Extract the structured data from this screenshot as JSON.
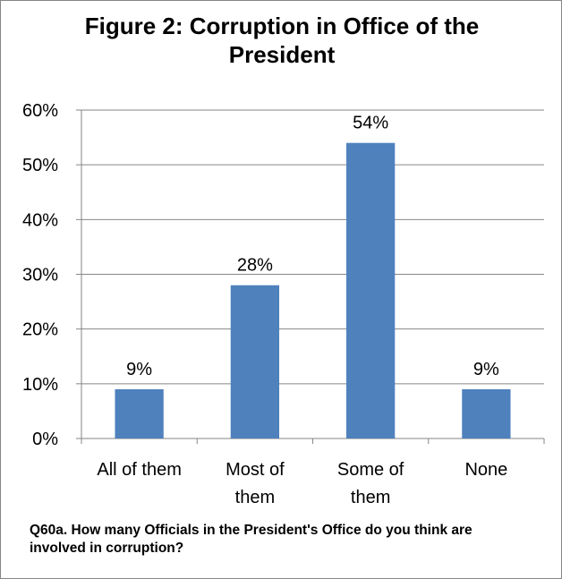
{
  "chart_data": {
    "type": "bar",
    "title": "Figure 2: Corruption in Office of the President",
    "categories": [
      [
        "All of them"
      ],
      [
        "Most of",
        "them"
      ],
      [
        "Some of",
        "them"
      ],
      [
        "None"
      ]
    ],
    "values": [
      9,
      28,
      54,
      9
    ],
    "data_labels": [
      "9%",
      "28%",
      "54%",
      "9%"
    ],
    "y_ticks": [
      "0%",
      "10%",
      "20%",
      "30%",
      "40%",
      "50%",
      "60%"
    ],
    "ylim": [
      0,
      60
    ],
    "grid": true,
    "bar_color": "#4f81bd",
    "gridline_color": "#868686"
  },
  "footnote": "Q60a. How many Officials in the President's Office do you think are involved in corruption?"
}
